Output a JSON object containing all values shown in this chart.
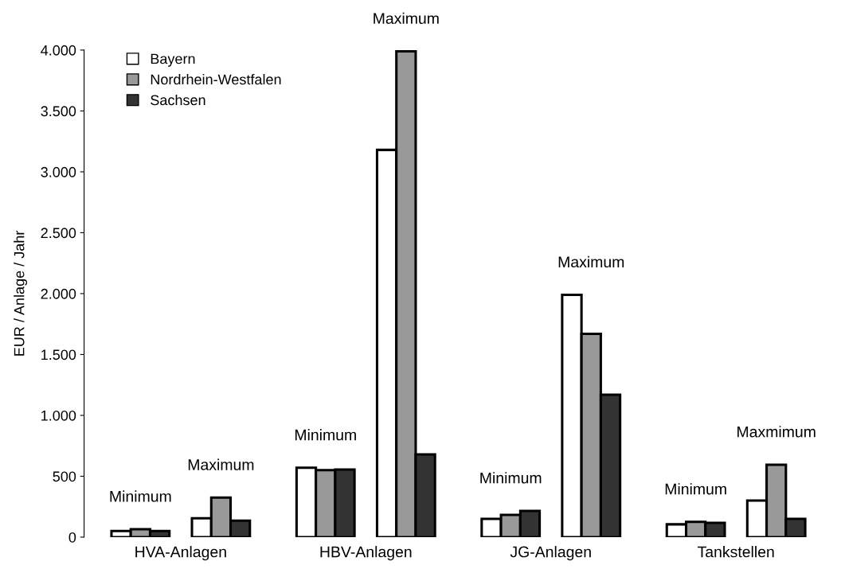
{
  "chart_data": {
    "type": "bar",
    "ylabel": "EUR / Anlage / Jahr",
    "categories": [
      null,
      null,
      null,
      null,
      null,
      null,
      null,
      null
    ],
    "series": [
      {
        "name": "Bayern",
        "color": "#ffffff",
        "values": [
          50,
          155,
          570,
          3180,
          150,
          1990,
          105,
          300
        ]
      },
      {
        "name": "Nordrhein-Westfalen",
        "color": "#999999",
        "values": [
          65,
          325,
          550,
          3990,
          183,
          1670,
          125,
          595
        ]
      },
      {
        "name": "Sachsen",
        "color": "#333333",
        "values": [
          50,
          135,
          555,
          680,
          216,
          1170,
          118,
          150
        ]
      }
    ],
    "annotations": [
      "Minimum",
      "Maximum",
      "Minimum",
      "Maximum",
      "Minimum",
      "Maximum",
      "Minimum",
      "Maxmimum",
      "HVA-Anlagen",
      "HBV-Anlagen",
      "JG-Anlagen",
      "Tankstellen"
    ],
    "ylim": [
      0,
      4000
    ],
    "yticks": [
      0,
      {
        "value": 500,
        "label": "500"
      },
      {
        "value": 1000,
        "label": "1.000"
      },
      {
        "value": 1500,
        "label": "1.500"
      },
      {
        "value": 2000,
        "label": "2.000"
      },
      {
        "value": 2500,
        "label": "2.500"
      },
      {
        "value": 3000,
        "label": "3.000"
      },
      {
        "value": 3500,
        "label": "3.500"
      },
      {
        "value": 4000,
        "label": "4.000"
      }
    ],
    "grid": false,
    "legend": "top left"
  }
}
